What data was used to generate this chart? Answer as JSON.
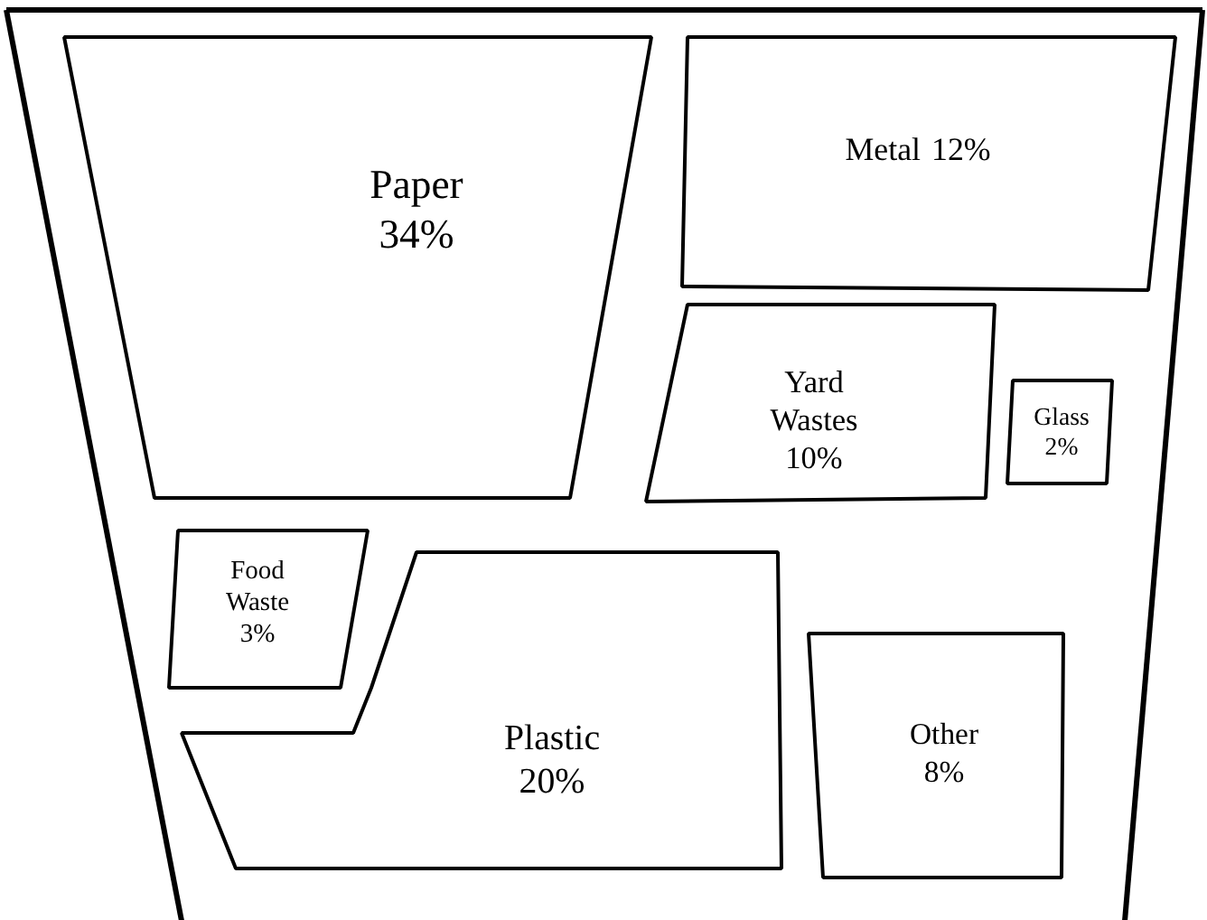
{
  "chart_data": {
    "type": "other",
    "categories": [
      "Paper",
      "Metal",
      "Yard Wastes",
      "Glass",
      "Food Waste",
      "Plastic",
      "Other"
    ],
    "values": [
      34,
      12,
      10,
      2,
      3,
      20,
      8
    ],
    "value_labels": [
      "34%",
      "12%",
      "10%",
      "2%",
      "3%",
      "20%",
      "8%"
    ]
  }
}
